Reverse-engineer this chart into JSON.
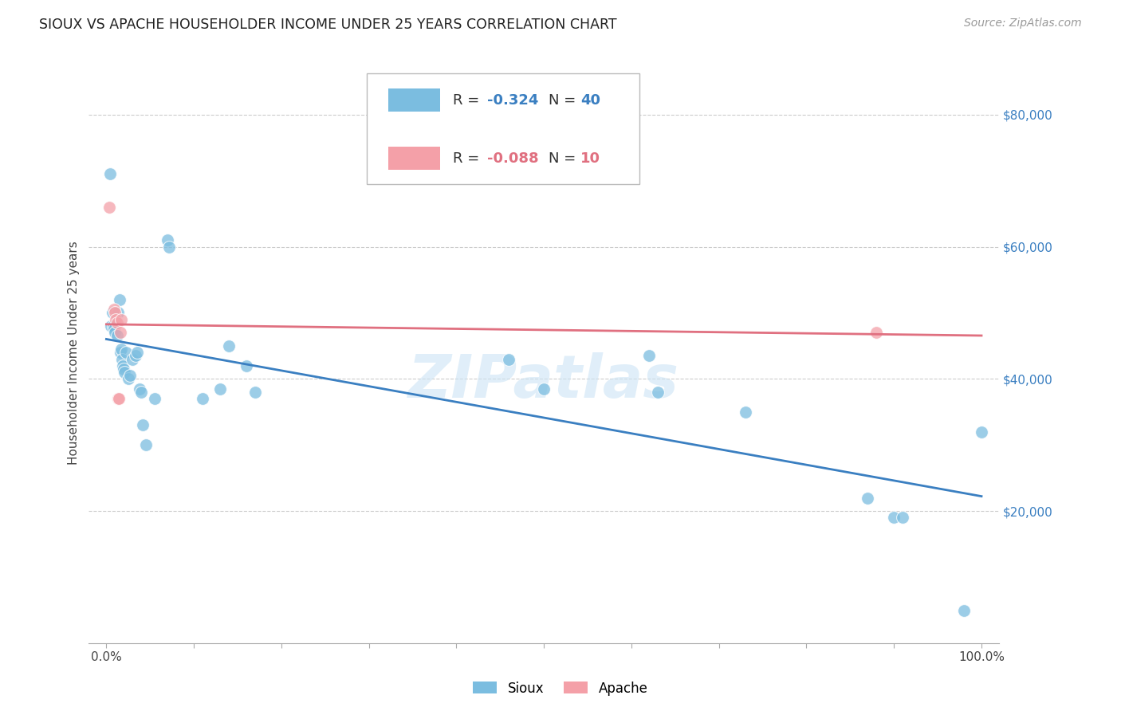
{
  "title": "SIOUX VS APACHE HOUSEHOLDER INCOME UNDER 25 YEARS CORRELATION CHART",
  "source": "Source: ZipAtlas.com",
  "ylabel": "Householder Income Under 25 years",
  "xlim": [
    -2,
    102
  ],
  "ylim": [
    0,
    88000
  ],
  "background_color": "#ffffff",
  "grid_color": "#cccccc",
  "watermark": "ZIPatlas",
  "sioux_color": "#7bbde0",
  "apache_color": "#f4a0a8",
  "sioux_line_color": "#3a7fc1",
  "apache_line_color": "#e07080",
  "sioux_points": [
    [
      0.4,
      71000
    ],
    [
      0.5,
      48000
    ],
    [
      0.7,
      50000
    ],
    [
      0.8,
      48000
    ],
    [
      0.9,
      47500
    ],
    [
      1.0,
      47000
    ],
    [
      1.2,
      46500
    ],
    [
      1.3,
      50000
    ],
    [
      1.5,
      52000
    ],
    [
      1.6,
      44000
    ],
    [
      1.7,
      44500
    ],
    [
      1.8,
      43000
    ],
    [
      1.9,
      42000
    ],
    [
      2.0,
      41500
    ],
    [
      2.1,
      41000
    ],
    [
      2.2,
      44000
    ],
    [
      2.5,
      40000
    ],
    [
      2.7,
      40500
    ],
    [
      3.0,
      43000
    ],
    [
      3.3,
      43500
    ],
    [
      3.5,
      44000
    ],
    [
      3.8,
      38500
    ],
    [
      4.0,
      38000
    ],
    [
      4.2,
      33000
    ],
    [
      4.5,
      30000
    ],
    [
      5.5,
      37000
    ],
    [
      7.0,
      61000
    ],
    [
      7.2,
      60000
    ],
    [
      11.0,
      37000
    ],
    [
      13.0,
      38500
    ],
    [
      14.0,
      45000
    ],
    [
      16.0,
      42000
    ],
    [
      17.0,
      38000
    ],
    [
      46.0,
      43000
    ],
    [
      50.0,
      38500
    ],
    [
      62.0,
      43500
    ],
    [
      63.0,
      38000
    ],
    [
      73.0,
      35000
    ],
    [
      87.0,
      22000
    ],
    [
      90.0,
      19000
    ],
    [
      91.0,
      19000
    ],
    [
      98.0,
      5000
    ],
    [
      100.0,
      32000
    ]
  ],
  "apache_points": [
    [
      0.3,
      66000
    ],
    [
      0.9,
      50500
    ],
    [
      1.0,
      50000
    ],
    [
      1.1,
      49000
    ],
    [
      1.2,
      48500
    ],
    [
      1.3,
      37000
    ],
    [
      1.4,
      37000
    ],
    [
      1.6,
      47000
    ],
    [
      1.7,
      49000
    ],
    [
      88.0,
      47000
    ]
  ],
  "figsize": [
    14.06,
    8.92
  ],
  "dpi": 100
}
